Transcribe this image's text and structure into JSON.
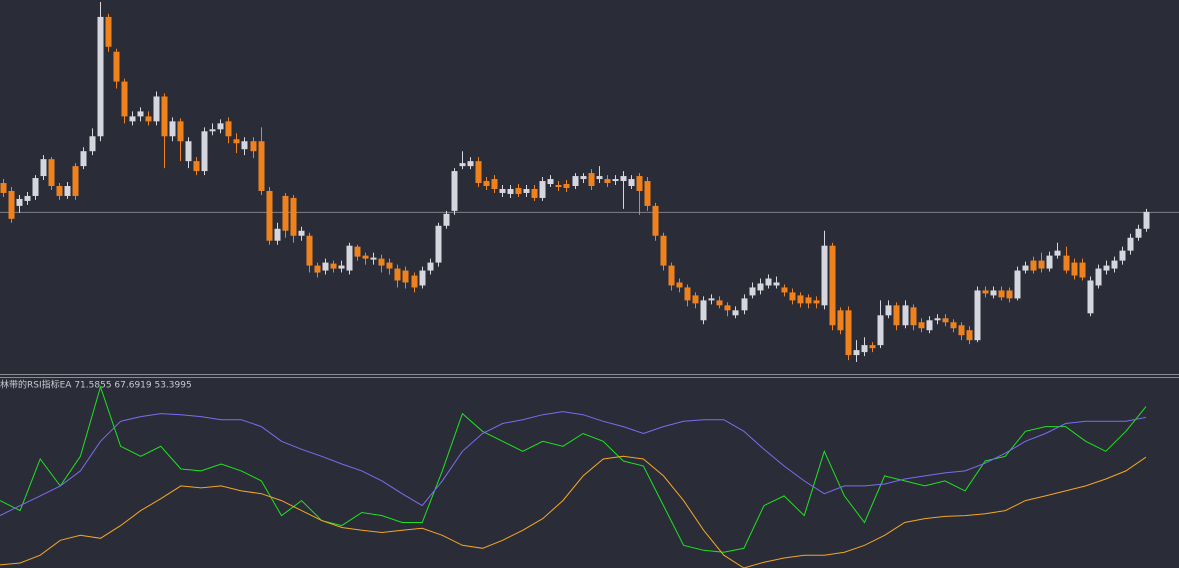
{
  "chart_data": [
    {
      "type": "candlestick",
      "up_color": "#d6d6de",
      "down_color": "#f0821e",
      "ylim": [
        0,
        372
      ],
      "open": [
        190,
        182,
        167,
        172,
        177,
        197,
        214,
        187,
        177,
        207,
        207,
        222,
        237,
        357,
        322,
        292,
        252,
        257,
        257,
        252,
        277,
        237,
        252,
        212,
        212,
        202,
        242,
        244,
        252,
        234,
        224,
        232,
        232,
        182,
        132,
        177,
        175,
        137,
        137,
        107,
        102,
        109,
        104,
        102,
        126,
        117,
        113,
        114,
        110,
        104,
        102,
        97,
        87,
        102,
        110,
        147,
        162,
        207,
        207,
        212,
        192,
        194,
        180,
        179,
        185,
        180,
        184,
        175,
        189,
        188,
        189,
        187,
        194,
        200,
        194,
        194,
        192,
        192,
        187,
        197,
        192,
        167,
        137,
        107,
        90,
        85,
        77,
        52,
        72,
        72,
        67,
        57,
        62,
        77,
        82,
        87,
        87,
        85,
        80,
        77,
        75,
        72,
        67,
        127,
        62,
        62,
        17,
        20,
        27,
        27,
        57,
        67,
        47,
        65,
        50,
        42,
        52,
        54,
        50,
        47,
        42,
        32,
        82,
        77,
        82,
        82,
        74,
        102,
        112,
        112,
        104,
        117,
        117,
        110,
        110,
        59,
        87,
        102,
        104,
        112,
        122,
        135,
        144
      ],
      "high": [
        194,
        186,
        178,
        181,
        198,
        218,
        216,
        190,
        191,
        210,
        226,
        245,
        372,
        360,
        325,
        295,
        262,
        266,
        262,
        282,
        280,
        256,
        255,
        236,
        216,
        246,
        250,
        254,
        256,
        240,
        236,
        236,
        246,
        186,
        150,
        180,
        178,
        146,
        140,
        110,
        114,
        112,
        112,
        130,
        128,
        120,
        120,
        118,
        114,
        108,
        106,
        100,
        106,
        114,
        150,
        162,
        205,
        222,
        216,
        216,
        196,
        198,
        188,
        188,
        189,
        188,
        188,
        196,
        198,
        192,
        193,
        200,
        200,
        204,
        207,
        198,
        198,
        202,
        198,
        200,
        196,
        170,
        140,
        110,
        94,
        88,
        80,
        76,
        78,
        76,
        70,
        66,
        78,
        90,
        94,
        98,
        96,
        88,
        84,
        80,
        78,
        76,
        142,
        130,
        65,
        66,
        32,
        35,
        30,
        72,
        72,
        70,
        72,
        68,
        54,
        56,
        58,
        58,
        53,
        50,
        46,
        86,
        86,
        86,
        86,
        85,
        106,
        111,
        116,
        120,
        121,
        130,
        126,
        114,
        114,
        96,
        108,
        112,
        116,
        126,
        139,
        148,
        164
      ],
      "low": [
        176,
        150,
        160,
        168,
        173,
        193,
        183,
        173,
        174,
        173,
        204,
        218,
        232,
        322,
        285,
        250,
        248,
        252,
        248,
        248,
        205,
        232,
        212,
        205,
        198,
        198,
        238,
        240,
        230,
        220,
        218,
        215,
        178,
        128,
        128,
        135,
        130,
        132,
        100,
        95,
        98,
        100,
        100,
        98,
        112,
        108,
        108,
        100,
        98,
        85,
        84,
        80,
        84,
        98,
        106,
        144,
        158,
        204,
        204,
        186,
        183,
        180,
        176,
        175,
        176,
        176,
        172,
        172,
        186,
        182,
        181,
        184,
        190,
        183,
        190,
        186,
        188,
        164,
        184,
        158,
        162,
        132,
        102,
        82,
        80,
        66,
        64,
        48,
        68,
        64,
        56,
        54,
        58,
        74,
        78,
        84,
        84,
        76,
        68,
        65,
        64,
        64,
        63,
        42,
        38,
        12,
        10,
        16,
        20,
        24,
        54,
        42,
        44,
        42,
        40,
        39,
        48,
        46,
        40,
        32,
        28,
        30,
        75,
        74,
        72,
        70,
        72,
        99,
        99,
        100,
        101,
        114,
        99,
        93,
        92,
        56,
        84,
        98,
        100,
        108,
        118,
        132,
        141
      ],
      "close": [
        180,
        154,
        174,
        177,
        195,
        214,
        187,
        177,
        187,
        177,
        222,
        237,
        357,
        327,
        292,
        257,
        257,
        262,
        252,
        277,
        237,
        252,
        232,
        232,
        202,
        242,
        244,
        250,
        237,
        230,
        232,
        222,
        182,
        132,
        144,
        142,
        137,
        142,
        107,
        100,
        110,
        104,
        107,
        127,
        116,
        114,
        115,
        107,
        104,
        92,
        90,
        85,
        102,
        110,
        147,
        159,
        202,
        210,
        212,
        190,
        187,
        184,
        184,
        184,
        179,
        184,
        175,
        192,
        194,
        186,
        185,
        197,
        197,
        187,
        197,
        190,
        194,
        197,
        194,
        182,
        167,
        137,
        107,
        87,
        85,
        72,
        69,
        72,
        74,
        67,
        62,
        62,
        74,
        85,
        89,
        94,
        90,
        80,
        72,
        69,
        69,
        69,
        127,
        47,
        42,
        17,
        22,
        27,
        24,
        57,
        67,
        47,
        67,
        47,
        44,
        52,
        54,
        50,
        44,
        37,
        32,
        82,
        79,
        82,
        75,
        74,
        102,
        107,
        102,
        104,
        117,
        122,
        102,
        97,
        95,
        92,
        104,
        107,
        112,
        122,
        135,
        144,
        161
      ]
    },
    {
      "type": "line",
      "title": "林带的RSI指标EA 71.5855 67.6919 53.3995",
      "ylim": [
        13.4,
        81.2
      ],
      "series": [
        {
          "color": "#1fe21f",
          "values": [
            37.7,
            34.1,
            52.7,
            43.0,
            53.7,
            78.7,
            57.3,
            53.7,
            57.3,
            49.1,
            48.4,
            50.9,
            48.4,
            44.8,
            32.3,
            37.7,
            30.5,
            28.7,
            33.4,
            32.3,
            29.8,
            29.8,
            48.4,
            69.1,
            62.7,
            59.1,
            55.5,
            59.1,
            57.3,
            61.9,
            59.1,
            52.0,
            50.2,
            35.9,
            21.6,
            19.8,
            19.1,
            20.5,
            35.9,
            39.4,
            32.3,
            55.5,
            39.4,
            29.8,
            46.6,
            44.8,
            43.0,
            44.8,
            41.2,
            52.0,
            53.7,
            62.7,
            64.4,
            64.4,
            59.1,
            55.5,
            62.7,
            71.6
          ]
        },
        {
          "color": "#7b6cf0",
          "values": [
            32.3,
            35.9,
            39.4,
            43.0,
            48.4,
            59.1,
            66.3,
            68.0,
            69.1,
            68.7,
            68.0,
            66.9,
            66.9,
            64.4,
            59.1,
            56.2,
            53.7,
            50.9,
            48.4,
            44.8,
            40.2,
            35.9,
            44.8,
            55.5,
            61.9,
            65.5,
            66.9,
            68.7,
            69.8,
            68.7,
            66.3,
            64.4,
            61.9,
            64.4,
            66.3,
            66.9,
            66.9,
            62.7,
            56.2,
            50.2,
            44.8,
            40.2,
            43.0,
            43.0,
            43.7,
            45.5,
            46.6,
            47.7,
            48.4,
            51.2,
            54.8,
            59.1,
            61.9,
            65.5,
            66.3,
            66.3,
            66.3,
            67.7
          ]
        },
        {
          "color": "#f5a623",
          "values": [
            14.5,
            15.2,
            18.0,
            23.4,
            25.2,
            24.1,
            28.7,
            34.1,
            38.4,
            43.0,
            42.3,
            43.0,
            41.2,
            40.2,
            37.7,
            34.1,
            30.5,
            28.0,
            27.0,
            26.2,
            27.0,
            27.7,
            25.2,
            21.6,
            20.5,
            23.4,
            27.0,
            31.2,
            37.7,
            46.6,
            52.7,
            53.7,
            52.7,
            46.6,
            37.7,
            27.0,
            18.0,
            13.4,
            15.5,
            17.0,
            18.0,
            18.0,
            19.1,
            21.6,
            25.2,
            29.8,
            31.2,
            32.0,
            32.3,
            33.0,
            34.1,
            37.7,
            39.4,
            41.2,
            43.0,
            45.5,
            48.4,
            53.4
          ]
        }
      ]
    }
  ]
}
